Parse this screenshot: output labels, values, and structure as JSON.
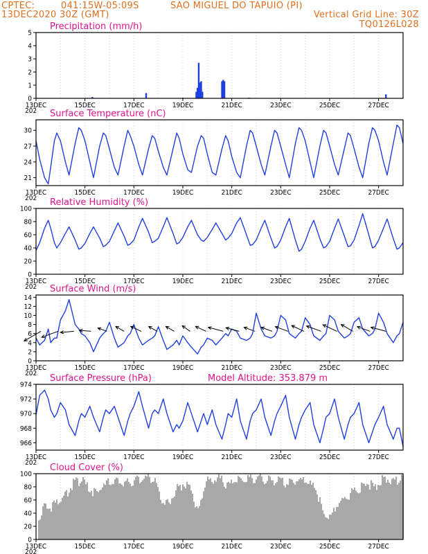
{
  "header": {
    "source": "CPTEC:",
    "coords": "041:15W-05:09S",
    "location": "SAO MIGUEL DO TAPUIO (PI)",
    "run": "13DEC2020 30Z (GMT)",
    "grid_label": "Vertical Grid Line: 30Z",
    "model_id": "TQ0126L028"
  },
  "colors": {
    "line": "#1f3fe0",
    "cloud": "#a8a8a8",
    "header": "#e07020",
    "title": "#e0148c"
  },
  "x_axis": {
    "ticks": [
      "13DEC",
      "15DEC",
      "17DEC",
      "19DEC",
      "21DEC",
      "23DEC",
      "25DEC",
      "27DEC"
    ],
    "year_fragment": "202"
  },
  "chart_data": [
    {
      "type": "bar",
      "title": "Precipitation (mm/h)",
      "ylim": [
        0,
        5
      ],
      "yticks": [
        "0",
        "1",
        "2",
        "3",
        "4",
        "5"
      ],
      "x_days": [
        15.3,
        17.5,
        19.0,
        19.55,
        19.6,
        19.65,
        19.7,
        19.75,
        19.8,
        20.6,
        20.65,
        20.7,
        21.7,
        27.3
      ],
      "values": [
        0.1,
        0.4,
        0.05,
        0.5,
        0.8,
        2.7,
        1.2,
        1.3,
        0.5,
        1.3,
        1.4,
        1.3,
        0.05,
        0.3
      ]
    },
    {
      "type": "line",
      "title": "Surface Temperature (nC)",
      "ylim": [
        19.5,
        32
      ],
      "yticks": [
        "21",
        "24",
        "27",
        "30"
      ],
      "x_days": [
        13.0,
        13.15,
        13.35,
        13.5,
        13.6,
        13.75,
        13.85,
        14.0,
        14.2,
        14.35,
        14.6,
        14.75,
        14.85,
        15.0,
        15.2,
        15.35,
        15.6,
        15.75,
        15.85,
        16.0,
        16.2,
        16.35,
        16.6,
        16.75,
        16.85,
        17.0,
        17.2,
        17.35,
        17.6,
        17.75,
        17.85,
        18.0,
        18.2,
        18.35,
        18.6,
        18.75,
        18.85,
        19.0,
        19.2,
        19.35,
        19.6,
        19.75,
        19.85,
        20.0,
        20.2,
        20.35,
        20.6,
        20.75,
        20.85,
        21.0,
        21.2,
        21.35,
        21.6,
        21.75,
        21.85,
        22.0,
        22.2,
        22.35,
        22.6,
        22.75,
        22.85,
        23.0,
        23.2,
        23.35,
        23.6,
        23.75,
        23.85,
        24.0,
        24.2,
        24.35,
        24.6,
        24.75,
        24.85,
        25.0,
        25.2,
        25.35,
        25.6,
        25.75,
        25.85,
        26.0,
        26.2,
        26.35,
        26.6,
        26.75,
        26.85,
        27.0,
        27.2,
        27.35,
        27.6,
        27.75,
        27.85,
        28.0
      ],
      "values": [
        28.0,
        24.5,
        21.0,
        19.8,
        23.0,
        28.0,
        29.5,
        28.0,
        24.0,
        21.5,
        27.5,
        30.5,
        30.0,
        28.0,
        24.0,
        21.0,
        27.0,
        29.5,
        29.0,
        26.5,
        23.0,
        21.5,
        27.0,
        30.0,
        29.0,
        27.0,
        23.5,
        21.5,
        26.5,
        29.0,
        28.5,
        26.0,
        23.0,
        21.5,
        26.5,
        29.5,
        28.5,
        25.5,
        22.5,
        22.0,
        27.0,
        29.0,
        28.5,
        25.5,
        22.0,
        21.5,
        26.5,
        29.0,
        28.0,
        25.0,
        22.0,
        21.0,
        27.0,
        30.0,
        29.5,
        27.0,
        23.5,
        21.5,
        27.0,
        30.0,
        29.5,
        27.0,
        23.5,
        21.0,
        27.5,
        30.5,
        30.0,
        28.0,
        24.0,
        21.0,
        27.0,
        30.0,
        29.5,
        27.0,
        23.5,
        21.5,
        26.5,
        29.5,
        29.0,
        26.5,
        23.0,
        21.0,
        27.5,
        30.5,
        30.0,
        28.0,
        24.0,
        21.5,
        27.5,
        31.0,
        30.5,
        27.5
      ]
    },
    {
      "type": "line",
      "title": "Relative Humidity (%)",
      "ylim": [
        0,
        100
      ],
      "yticks": [
        "0",
        "20",
        "40",
        "60",
        "80",
        "100"
      ],
      "x_days": [
        13.0,
        13.15,
        13.35,
        13.5,
        13.6,
        13.75,
        13.85,
        14.0,
        14.2,
        14.35,
        14.6,
        14.75,
        14.85,
        15.0,
        15.2,
        15.35,
        15.6,
        15.75,
        15.85,
        16.0,
        16.2,
        16.35,
        16.6,
        16.75,
        16.85,
        17.0,
        17.2,
        17.35,
        17.6,
        17.75,
        17.85,
        18.0,
        18.2,
        18.35,
        18.6,
        18.75,
        18.85,
        19.0,
        19.2,
        19.35,
        19.6,
        19.75,
        19.85,
        20.0,
        20.2,
        20.35,
        20.6,
        20.75,
        20.85,
        21.0,
        21.2,
        21.35,
        21.6,
        21.75,
        21.85,
        22.0,
        22.2,
        22.35,
        22.6,
        22.75,
        22.85,
        23.0,
        23.2,
        23.35,
        23.6,
        23.75,
        23.85,
        24.0,
        24.2,
        24.35,
        24.6,
        24.75,
        24.85,
        25.0,
        25.2,
        25.35,
        25.6,
        25.75,
        25.85,
        26.0,
        26.2,
        26.35,
        26.6,
        26.75,
        26.85,
        27.0,
        27.2,
        27.35,
        27.6,
        27.75,
        27.85,
        28.0
      ],
      "values": [
        36.0,
        48.0,
        70.0,
        82.0,
        70.0,
        48.0,
        40.0,
        48.0,
        62.0,
        72.0,
        52.0,
        38.0,
        40.0,
        47.0,
        62.0,
        72.0,
        55.0,
        42.0,
        44.0,
        50.0,
        66.0,
        78.0,
        58.0,
        44.0,
        46.0,
        52.0,
        72.0,
        85.0,
        64.0,
        48.0,
        50.0,
        55.0,
        72.0,
        86.0,
        62.0,
        46.0,
        48.0,
        56.0,
        72.0,
        82.0,
        60.0,
        52.0,
        50.0,
        56.0,
        68.0,
        78.0,
        62.0,
        52.0,
        55.0,
        62.0,
        78.0,
        86.0,
        60.0,
        44.0,
        45.0,
        52.0,
        70.0,
        82.0,
        55.0,
        40.0,
        42.0,
        52.0,
        72.0,
        85.0,
        52.0,
        35.0,
        38.0,
        50.0,
        70.0,
        82.0,
        54.0,
        40.0,
        42.0,
        50.0,
        70.0,
        84.0,
        58.0,
        42.0,
        43.0,
        52.0,
        74.0,
        92.0,
        60.0,
        40.0,
        42.0,
        52.0,
        70.0,
        84.0,
        54.0,
        38.0,
        40.0,
        48.0
      ]
    },
    {
      "type": "line",
      "title": "Surface Wind (m/s)",
      "ylim": [
        0,
        14.5
      ],
      "yticks": [
        "0",
        "2",
        "4",
        "6",
        "8",
        "10",
        "12",
        "14"
      ],
      "x_days": [
        13.0,
        13.15,
        13.35,
        13.5,
        13.6,
        13.75,
        13.85,
        14.0,
        14.2,
        14.35,
        14.6,
        14.75,
        14.85,
        15.0,
        15.2,
        15.35,
        15.6,
        15.75,
        15.85,
        16.0,
        16.2,
        16.35,
        16.6,
        16.75,
        16.85,
        17.0,
        17.2,
        17.35,
        17.6,
        17.75,
        17.85,
        18.0,
        18.2,
        18.35,
        18.6,
        18.75,
        18.85,
        19.0,
        19.2,
        19.35,
        19.6,
        19.75,
        19.85,
        20.0,
        20.2,
        20.35,
        20.6,
        20.75,
        20.85,
        21.0,
        21.2,
        21.35,
        21.6,
        21.75,
        21.85,
        22.0,
        22.2,
        22.35,
        22.6,
        22.75,
        22.85,
        23.0,
        23.2,
        23.35,
        23.6,
        23.75,
        23.85,
        24.0,
        24.2,
        24.35,
        24.6,
        24.75,
        24.85,
        25.0,
        25.2,
        25.35,
        25.6,
        25.75,
        25.85,
        26.0,
        26.2,
        26.35,
        26.6,
        26.75,
        26.85,
        27.0,
        27.2,
        27.35,
        27.6,
        27.75,
        27.85,
        28.0
      ],
      "values": [
        5.0,
        3.5,
        4.5,
        7.0,
        4.0,
        5.0,
        5.0,
        9.0,
        11.0,
        13.5,
        8.0,
        7.0,
        6.0,
        5.5,
        4.0,
        2.0,
        5.0,
        6.0,
        6.5,
        8.5,
        5.0,
        3.0,
        4.0,
        5.5,
        6.0,
        8.0,
        5.0,
        3.5,
        4.5,
        5.0,
        5.5,
        7.5,
        4.5,
        2.5,
        3.5,
        4.5,
        3.5,
        5.5,
        4.0,
        3.0,
        1.5,
        3.0,
        3.5,
        5.0,
        4.5,
        3.5,
        5.0,
        6.0,
        5.5,
        7.0,
        6.5,
        5.0,
        4.5,
        5.0,
        6.0,
        10.5,
        7.0,
        5.5,
        5.0,
        5.5,
        6.5,
        10.0,
        9.0,
        6.0,
        5.0,
        6.0,
        6.5,
        9.5,
        8.0,
        5.5,
        4.5,
        5.5,
        6.0,
        10.0,
        9.0,
        6.5,
        5.0,
        5.5,
        6.0,
        8.5,
        9.5,
        7.0,
        5.5,
        6.0,
        7.0,
        10.5,
        8.5,
        6.0,
        4.0,
        5.5,
        6.0,
        8.5
      ],
      "arrows_x_days": [
        13.2,
        13.9,
        14.55,
        15.25,
        15.9,
        16.6,
        17.3,
        17.95,
        18.65,
        19.3,
        19.95,
        20.65,
        21.3,
        21.95,
        22.65,
        23.3,
        23.95,
        24.65,
        25.3,
        25.95,
        26.65,
        27.3
      ],
      "arrows_len": [
        1.0,
        0.9,
        0.7,
        0.6,
        0.5,
        0.5,
        0.6,
        0.5,
        0.5,
        0.5,
        0.6,
        0.8,
        0.7,
        0.6,
        0.6,
        0.7,
        0.7,
        0.8,
        0.8,
        0.7,
        0.7,
        0.8
      ],
      "arrows_angle_deg": [
        -150,
        -160,
        -175,
        175,
        160,
        150,
        155,
        150,
        150,
        145,
        155,
        165,
        165,
        160,
        160,
        160,
        155,
        160,
        155,
        150,
        160,
        165
      ]
    },
    {
      "type": "line",
      "title": "Surface Pressure (hPa)",
      "extra_label": "Model Altitude: 353.879 m",
      "ylim": [
        965,
        974
      ],
      "yticks": [
        "966",
        "968",
        "970",
        "972",
        "974"
      ],
      "x_days": [
        13.0,
        13.15,
        13.35,
        13.5,
        13.6,
        13.75,
        13.85,
        14.0,
        14.2,
        14.35,
        14.6,
        14.75,
        14.85,
        15.0,
        15.2,
        15.35,
        15.6,
        15.75,
        15.85,
        16.0,
        16.2,
        16.35,
        16.6,
        16.75,
        16.85,
        17.0,
        17.2,
        17.35,
        17.6,
        17.75,
        17.85,
        18.0,
        18.2,
        18.35,
        18.6,
        18.75,
        18.85,
        19.0,
        19.2,
        19.35,
        19.6,
        19.75,
        19.85,
        20.0,
        20.2,
        20.35,
        20.6,
        20.75,
        20.85,
        21.0,
        21.2,
        21.35,
        21.6,
        21.75,
        21.85,
        22.0,
        22.2,
        22.35,
        22.6,
        22.75,
        22.85,
        23.0,
        23.2,
        23.35,
        23.6,
        23.75,
        23.85,
        24.0,
        24.2,
        24.35,
        24.6,
        24.75,
        24.85,
        25.0,
        25.2,
        25.35,
        25.6,
        25.75,
        25.85,
        26.0,
        26.2,
        26.35,
        26.6,
        26.75,
        26.85,
        27.0,
        27.2,
        27.35,
        27.6,
        27.75,
        27.85,
        28.0
      ],
      "values": [
        969.8,
        972.5,
        973.2,
        972.0,
        970.5,
        969.5,
        970.0,
        971.5,
        970.5,
        968.5,
        967.0,
        969.0,
        970.0,
        969.5,
        971.0,
        969.5,
        967.5,
        969.5,
        970.5,
        970.0,
        971.0,
        969.5,
        967.0,
        969.0,
        970.0,
        971.0,
        973.0,
        971.0,
        968.0,
        970.0,
        970.5,
        970.0,
        972.0,
        970.0,
        967.5,
        968.5,
        968.0,
        969.0,
        971.5,
        970.0,
        967.5,
        969.0,
        970.0,
        968.5,
        970.5,
        968.5,
        966.5,
        968.5,
        970.0,
        969.5,
        972.0,
        969.0,
        966.5,
        969.0,
        970.0,
        970.5,
        972.0,
        969.5,
        967.0,
        969.0,
        970.0,
        971.0,
        972.5,
        969.5,
        966.5,
        968.5,
        969.5,
        970.5,
        971.5,
        968.5,
        966.0,
        968.0,
        969.5,
        970.0,
        972.0,
        969.5,
        966.5,
        968.5,
        969.5,
        970.0,
        971.5,
        968.5,
        966.0,
        967.5,
        968.5,
        969.5,
        971.0,
        968.5,
        966.5,
        968.0,
        968.0,
        965.5
      ]
    },
    {
      "type": "area",
      "title": "Cloud Cover (%)",
      "ylim": [
        0,
        100
      ],
      "yticks": [
        "0",
        "20",
        "40",
        "60",
        "80",
        "100"
      ],
      "x_days": [
        13.0,
        13.3,
        13.6,
        13.9,
        14.2,
        14.5,
        14.8,
        15.1,
        15.4,
        15.7,
        16.0,
        16.3,
        16.6,
        16.9,
        17.2,
        17.5,
        17.8,
        18.1,
        18.4,
        18.7,
        19.0,
        19.3,
        19.6,
        19.9,
        20.2,
        20.5,
        20.8,
        21.1,
        21.4,
        21.7,
        22.0,
        22.3,
        22.6,
        22.9,
        23.2,
        23.5,
        23.8,
        24.1,
        24.4,
        24.7,
        25.0,
        25.3,
        25.6,
        25.9,
        26.2,
        26.5,
        26.8,
        27.1,
        27.4,
        27.7,
        28.0
      ],
      "values": [
        20,
        55,
        50,
        60,
        68,
        85,
        90,
        80,
        70,
        80,
        88,
        88,
        85,
        88,
        92,
        94,
        92,
        60,
        55,
        75,
        85,
        80,
        40,
        88,
        90,
        92,
        80,
        88,
        92,
        92,
        93,
        92,
        88,
        90,
        85,
        88,
        92,
        85,
        80,
        40,
        30,
        55,
        60,
        72,
        78,
        85,
        80,
        90,
        92,
        88,
        95
      ]
    }
  ]
}
